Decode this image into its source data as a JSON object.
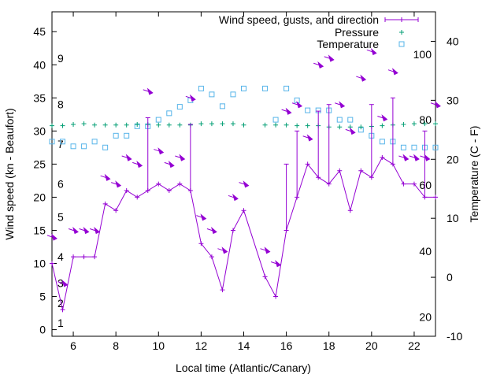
{
  "chart_data": {
    "type": "line",
    "xlabel": "Local time (Atlantic/Canary)",
    "ylabel_left": "Wind speed (kn - Beaufort)",
    "ylabel_right": "Temperature (C - F)",
    "xlim": [
      5,
      23
    ],
    "ylim_left": [
      -1,
      48
    ],
    "ylim_right_celsius": [
      -10,
      45
    ],
    "xticks": [
      "6",
      "8",
      "10",
      "12",
      "14",
      "16",
      "18",
      "20",
      "22"
    ],
    "yticks_left": [
      "0",
      "5",
      "10",
      "15",
      "20",
      "25",
      "30",
      "35",
      "40",
      "45"
    ],
    "yticks_right_celsius": [
      "-10",
      "0",
      "10",
      "20",
      "30",
      "40"
    ],
    "beaufort_labels": [
      {
        "label": "1",
        "kn": 1
      },
      {
        "label": "2",
        "kn": 4
      },
      {
        "label": "3",
        "kn": 7
      },
      {
        "label": "4",
        "kn": 11
      },
      {
        "label": "5",
        "kn": 17
      },
      {
        "label": "6",
        "kn": 22
      },
      {
        "label": "7",
        "kn": 28
      },
      {
        "label": "8",
        "kn": 34
      },
      {
        "label": "9",
        "kn": 41
      }
    ],
    "fahrenheit_labels": [
      {
        "label": "20",
        "celsius": -6.7
      },
      {
        "label": "40",
        "celsius": 4.4
      },
      {
        "label": "60",
        "celsius": 15.6
      },
      {
        "label": "80",
        "celsius": 26.7
      },
      {
        "label": "100",
        "celsius": 37.8
      }
    ],
    "legend": [
      {
        "label": "Wind speed, gusts, and direction",
        "color": "#9400d3"
      },
      {
        "label": "Pressure",
        "color": "#009e73"
      },
      {
        "label": "Temperature",
        "color": "#56b4e9"
      }
    ],
    "legend_position": "top-right",
    "series": [
      {
        "name": "Wind speed, gusts, and direction",
        "x": [
          5,
          5.5,
          6,
          6.5,
          7,
          7.5,
          8,
          8.5,
          9,
          9.5,
          10,
          10.5,
          11,
          11.5,
          12,
          12.5,
          13,
          13.5,
          14,
          15,
          15.5,
          16,
          16.5,
          17,
          17.5,
          18,
          18.5,
          19,
          19.5,
          20,
          20.5,
          21,
          21.5,
          22,
          22.5,
          23
        ],
        "speed": [
          10,
          3,
          11,
          11,
          11,
          19,
          18,
          21,
          20,
          21,
          22,
          21,
          22,
          21,
          13,
          11,
          6,
          15,
          18,
          8,
          5,
          15,
          20,
          25,
          23,
          22,
          24,
          18,
          24,
          23,
          26,
          25,
          22,
          22,
          20,
          20
        ],
        "gust": [
          null,
          null,
          null,
          null,
          null,
          null,
          null,
          null,
          null,
          32,
          null,
          null,
          null,
          31,
          null,
          null,
          null,
          null,
          null,
          null,
          null,
          25,
          30,
          null,
          33,
          34,
          null,
          null,
          null,
          34,
          null,
          35,
          null,
          null,
          30,
          null
        ],
        "direction_arrows_y": [
          14,
          7,
          15,
          15,
          15,
          23,
          22,
          26,
          25,
          36,
          27,
          25,
          26,
          35,
          17,
          15,
          12,
          20,
          22,
          12,
          10,
          33,
          34,
          29,
          40,
          41,
          34,
          30,
          38,
          42,
          32,
          39,
          26,
          26,
          26,
          34
        ]
      },
      {
        "name": "Pressure",
        "x": [
          5,
          5.5,
          6,
          6.5,
          7,
          7.5,
          8,
          8.5,
          9,
          9.5,
          10,
          10.5,
          11,
          11.5,
          12,
          12.5,
          13,
          13.5,
          14,
          15,
          15.5,
          16,
          16.5,
          17,
          17.5,
          18,
          18.5,
          19,
          19.5,
          20,
          20.5,
          21,
          21.5,
          22,
          22.5,
          23
        ],
        "values_kn_axis": [
          30.8,
          30.8,
          31,
          31.1,
          30.9,
          30.9,
          30.9,
          30.9,
          31,
          31,
          30.9,
          30.9,
          30.9,
          30.9,
          31.1,
          31.1,
          31.1,
          31.1,
          30.9,
          30.9,
          30.9,
          30.9,
          30.8,
          30.8,
          30.8,
          30.6,
          30.6,
          30.6,
          30.6,
          30.7,
          30.8,
          30.9,
          31,
          31.1,
          31.1,
          31.1
        ]
      },
      {
        "name": "Temperature",
        "x": [
          5,
          5.5,
          6,
          6.5,
          7,
          7.5,
          8,
          8.5,
          9,
          9.5,
          10,
          10.5,
          11,
          11.5,
          12,
          12.5,
          13,
          13.5,
          14,
          15,
          15.5,
          16,
          16.5,
          17,
          17.5,
          18,
          18.5,
          19,
          19.5,
          20,
          20.5,
          21,
          21.5,
          22,
          22.5,
          23
        ],
        "celsius": [
          23,
          23,
          22.2,
          22.2,
          23,
          22,
          24,
          24,
          25.6,
          25.6,
          26.7,
          27.8,
          28.9,
          30,
          32,
          31,
          29,
          31,
          32,
          32,
          26.7,
          32,
          30,
          28.3,
          28.3,
          28.3,
          26.7,
          26.7,
          25,
          24,
          23,
          23,
          22,
          22,
          22,
          22
        ]
      }
    ]
  }
}
